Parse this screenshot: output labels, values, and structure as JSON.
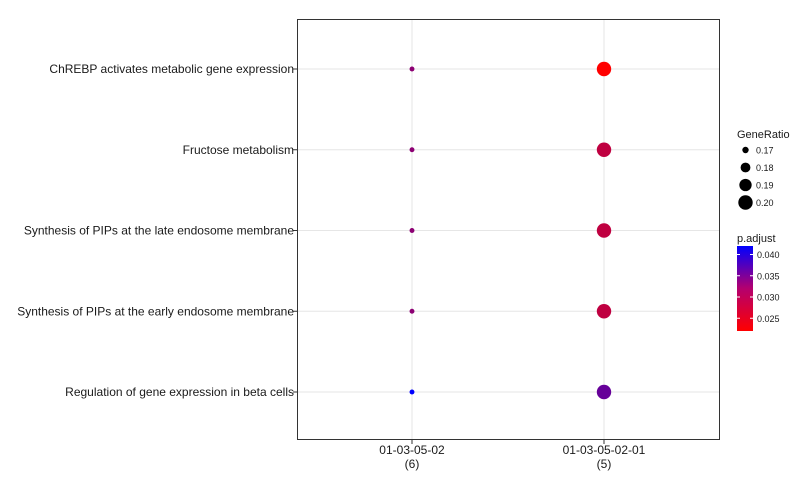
{
  "chart_data": {
    "type": "scatter",
    "y_categories": [
      "ChREBP activates metabolic gene expression",
      "Fructose metabolism",
      "Synthesis of PIPs at the late endosome membrane",
      "Synthesis of PIPs at the early endosome membrane",
      "Regulation of gene expression in beta cells"
    ],
    "x_categories": [
      {
        "line1": "01-03-05-02",
        "line2": "(6)"
      },
      {
        "line1": "01-03-05-02-01",
        "line2": "(5)"
      }
    ],
    "points": [
      {
        "x": 0,
        "y": 0,
        "gene_ratio": 0.167,
        "p_adjust": 0.031
      },
      {
        "x": 0,
        "y": 1,
        "gene_ratio": 0.167,
        "p_adjust": 0.031
      },
      {
        "x": 0,
        "y": 2,
        "gene_ratio": 0.167,
        "p_adjust": 0.031
      },
      {
        "x": 0,
        "y": 3,
        "gene_ratio": 0.167,
        "p_adjust": 0.031
      },
      {
        "x": 0,
        "y": 4,
        "gene_ratio": 0.167,
        "p_adjust": 0.042
      },
      {
        "x": 1,
        "y": 0,
        "gene_ratio": 0.2,
        "p_adjust": 0.022
      },
      {
        "x": 1,
        "y": 1,
        "gene_ratio": 0.2,
        "p_adjust": 0.027
      },
      {
        "x": 1,
        "y": 2,
        "gene_ratio": 0.2,
        "p_adjust": 0.027
      },
      {
        "x": 1,
        "y": 3,
        "gene_ratio": 0.2,
        "p_adjust": 0.027
      },
      {
        "x": 1,
        "y": 4,
        "gene_ratio": 0.2,
        "p_adjust": 0.034
      }
    ],
    "size_legend": {
      "title": "GeneRatio",
      "values": [
        0.17,
        0.18,
        0.19,
        0.2
      ],
      "labels": [
        "0.17",
        "0.18",
        "0.19",
        "0.20"
      ]
    },
    "color_legend": {
      "title": "p.adjust",
      "range": [
        0.022,
        0.042
      ],
      "ticks": [
        0.025,
        0.03,
        0.035,
        0.04
      ],
      "tick_labels": [
        "0.025",
        "0.030",
        "0.035",
        "0.040"
      ],
      "low_color": "#ff0000",
      "high_color": "#0000ff"
    },
    "size_range": [
      0.165,
      0.2
    ],
    "grid": true,
    "legend_position": "right"
  }
}
